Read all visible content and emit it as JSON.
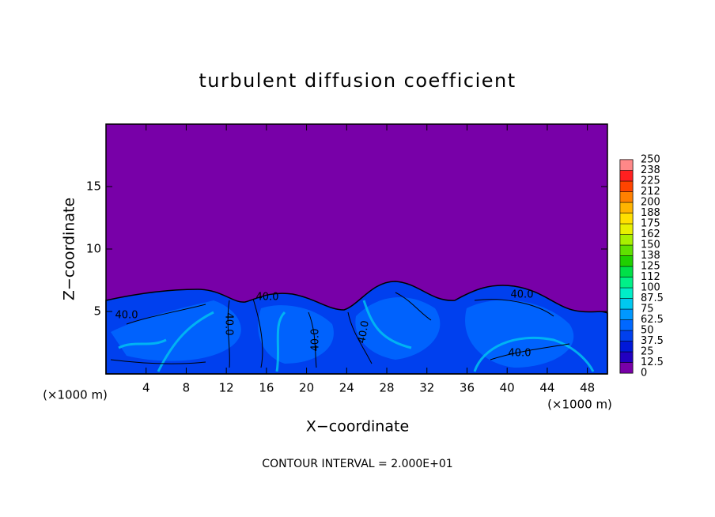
{
  "chart_data": {
    "type": "contour",
    "title": "turbulent diffusion coefficient",
    "xlabel": "X−coordinate",
    "ylabel": "Z−coordinate",
    "x_unit_label": "(×1000 m)",
    "xlim": [
      0,
      50
    ],
    "xticks": [
      4,
      8,
      12,
      16,
      20,
      24,
      28,
      32,
      36,
      40,
      44,
      48
    ],
    "ylim": [
      0,
      20
    ],
    "yticks": [
      5,
      10,
      15
    ],
    "colorbar": {
      "levels": [
        0,
        12.5,
        25,
        37.5,
        50,
        62.5,
        75,
        87.5,
        100,
        112,
        125,
        138,
        150,
        162,
        175,
        188,
        200,
        212,
        225,
        238,
        250
      ],
      "colors": [
        "#7800a8",
        "#2200c0",
        "#0018d8",
        "#0040ee",
        "#0068ff",
        "#0098ff",
        "#00c8f0",
        "#00eec8",
        "#00f088",
        "#00e048",
        "#20d000",
        "#60e000",
        "#a8f000",
        "#e8f000",
        "#ffe000",
        "#ffb400",
        "#ff8000",
        "#ff4400",
        "#ff2020",
        "#ff8888"
      ]
    },
    "contour_labels": [
      "40.0",
      "40.0",
      "40.0",
      "40.0",
      "40.0",
      "40.0",
      "40.0"
    ],
    "contour_interval": "CONTOUR INTERVAL = 2.000E+01"
  }
}
